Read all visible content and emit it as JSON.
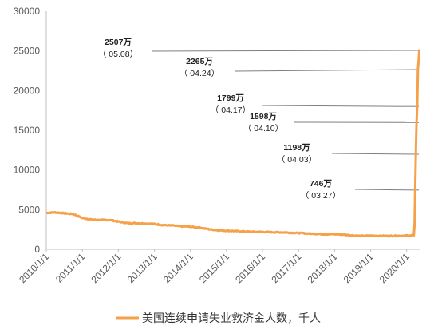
{
  "chart_data": {
    "type": "line",
    "xlabel": "",
    "ylabel": "",
    "ylim": [
      0,
      30000
    ],
    "y_ticks": [
      "0",
      "5000",
      "10000",
      "15000",
      "20000",
      "25000",
      "30000"
    ],
    "x_ticks": [
      "2010/1/1",
      "2011/1/1",
      "2012/1/1",
      "2013/1/1",
      "2014/1/1",
      "2015/1/1",
      "2016/1/1",
      "2017/1/1",
      "2018/1/1",
      "2019/1/1",
      "2020/1/1"
    ],
    "x_range": [
      "2010-01-01",
      "2020-05-20"
    ],
    "grid": false,
    "legend_position": "bottom",
    "colors": {
      "series": "#F4A14A",
      "axis": "#BFBFBF",
      "leader": "#7F7F7F",
      "text": "#595959"
    },
    "series": [
      {
        "name": "美国连续申请失业救济金人数，千人",
        "points": [
          [
            "2010-01-01",
            4600
          ],
          [
            "2010-04-01",
            4650
          ],
          [
            "2010-07-01",
            4550
          ],
          [
            "2010-10-01",
            4450
          ],
          [
            "2011-01-01",
            3950
          ],
          [
            "2011-04-01",
            3750
          ],
          [
            "2011-07-01",
            3700
          ],
          [
            "2011-10-01",
            3700
          ],
          [
            "2012-01-01",
            3500
          ],
          [
            "2012-04-01",
            3300
          ],
          [
            "2012-07-01",
            3300
          ],
          [
            "2012-10-01",
            3250
          ],
          [
            "2013-01-01",
            3200
          ],
          [
            "2013-04-01",
            3050
          ],
          [
            "2013-07-01",
            3000
          ],
          [
            "2013-10-01",
            2900
          ],
          [
            "2014-01-01",
            2850
          ],
          [
            "2014-04-01",
            2750
          ],
          [
            "2014-07-01",
            2550
          ],
          [
            "2014-10-01",
            2400
          ],
          [
            "2015-01-01",
            2350
          ],
          [
            "2015-04-01",
            2300
          ],
          [
            "2015-07-01",
            2250
          ],
          [
            "2015-10-01",
            2200
          ],
          [
            "2016-01-01",
            2200
          ],
          [
            "2016-04-01",
            2150
          ],
          [
            "2016-07-01",
            2150
          ],
          [
            "2016-10-01",
            2100
          ],
          [
            "2017-01-01",
            2050
          ],
          [
            "2017-04-01",
            2000
          ],
          [
            "2017-07-01",
            1950
          ],
          [
            "2017-10-01",
            1900
          ],
          [
            "2018-01-01",
            1900
          ],
          [
            "2018-04-01",
            1850
          ],
          [
            "2018-07-01",
            1750
          ],
          [
            "2018-10-01",
            1680
          ],
          [
            "2019-01-01",
            1720
          ],
          [
            "2019-04-01",
            1700
          ],
          [
            "2019-07-01",
            1690
          ],
          [
            "2019-10-01",
            1700
          ],
          [
            "2020-01-01",
            1730
          ],
          [
            "2020-02-15",
            1720
          ],
          [
            "2020-03-14",
            1780
          ],
          [
            "2020-03-21",
            3060
          ],
          [
            "2020-03-27",
            7460
          ],
          [
            "2020-04-03",
            11980
          ],
          [
            "2020-04-10",
            15980
          ],
          [
            "2020-04-17",
            17990
          ],
          [
            "2020-04-24",
            22650
          ],
          [
            "2020-05-08",
            25070
          ],
          [
            "2020-05-09",
            24950
          ]
        ]
      }
    ],
    "annotations": [
      {
        "value": "2507万",
        "date": "（ 05.08）",
        "y": 25070
      },
      {
        "value": "2265万",
        "date": "（ 04.24）",
        "y": 22650
      },
      {
        "value": "1799万",
        "date": "（ 04.17）",
        "y": 17990
      },
      {
        "value": "1598万",
        "date": "（ 04.10）",
        "y": 15980
      },
      {
        "value": "1198万",
        "date": "（ 04.03）",
        "y": 11980
      },
      {
        "value": "746万",
        "date": "（ 03.27）",
        "y": 7460
      }
    ]
  }
}
